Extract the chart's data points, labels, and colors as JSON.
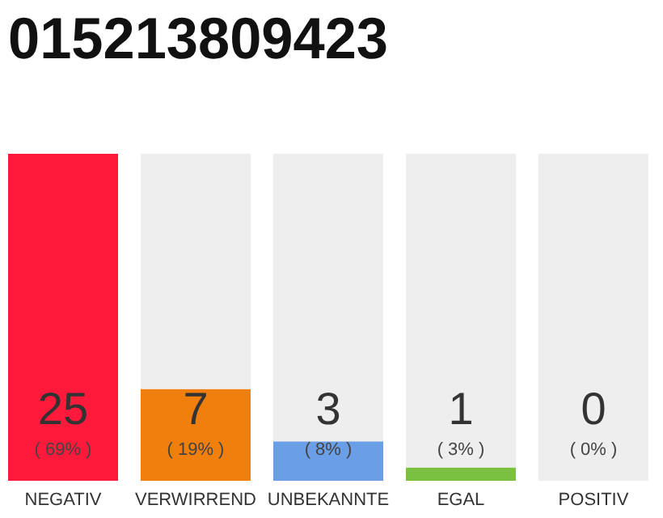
{
  "chart_data": {
    "type": "bar",
    "title": "015213809423",
    "categories": [
      "NEGATIV",
      "VERWIRREND",
      "UNBEKANNTE",
      "EGAL",
      "POSITIV"
    ],
    "series": [
      {
        "colors": [
          "#ff1a3c",
          "#f07f0d",
          "#6a9fe8",
          "#7ac142",
          "#cccccc"
        ],
        "values": [
          25,
          7,
          3,
          1,
          0
        ],
        "value_labels": [
          "25\n( 69% )",
          "7\n( 19% )",
          "3\n( 8% )",
          "1\n( 3% )",
          "0\n( 0% )"
        ]
      }
    ],
    "bands": [
      {
        "axis": "x",
        "from": "VERWIRREND",
        "to": "VERWIRREND",
        "color": "#eeeeee"
      },
      {
        "axis": "x",
        "from": "UNBEKANNTE",
        "to": "UNBEKANNTE",
        "color": "#eeeeee"
      },
      {
        "axis": "x",
        "from": "EGAL",
        "to": "EGAL",
        "color": "#eeeeee"
      },
      {
        "axis": "x",
        "from": "POSITIV",
        "to": "POSITIV",
        "color": "#eeeeee"
      }
    ]
  }
}
